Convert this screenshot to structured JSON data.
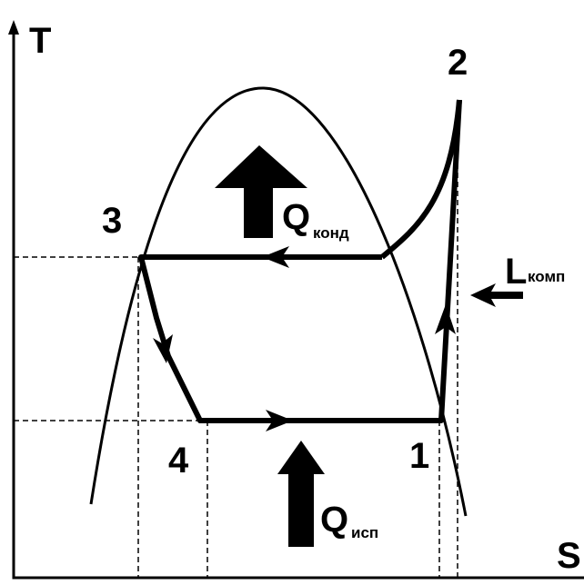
{
  "axes": {
    "y_label": "T",
    "x_label": "S"
  },
  "points": [
    {
      "label": "1"
    },
    {
      "label": "2"
    },
    {
      "label": "3"
    },
    {
      "label": "4"
    }
  ],
  "condenser_heat": {
    "symbol": "Q",
    "subscript": "конд"
  },
  "evaporator_heat": {
    "symbol": "Q",
    "subscript": "исп"
  },
  "compressor_work": {
    "symbol": "L",
    "subscript": "комп"
  }
}
